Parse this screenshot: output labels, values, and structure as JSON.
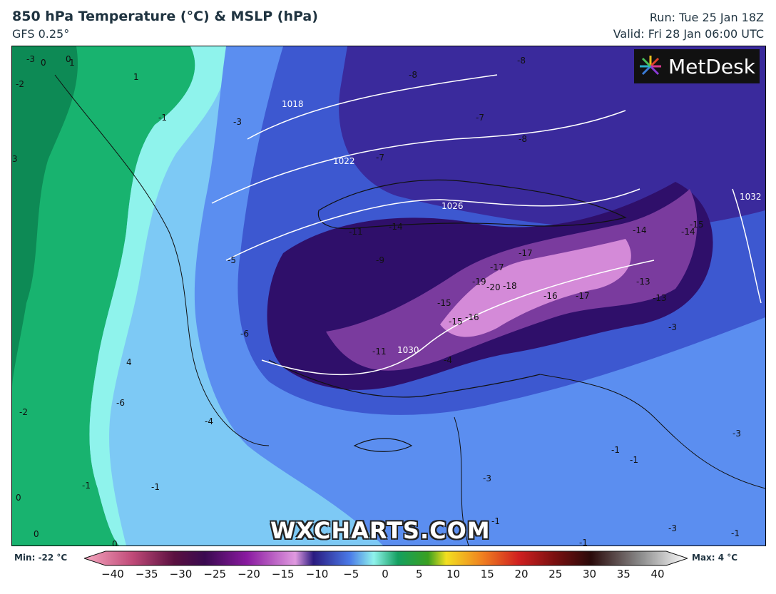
{
  "header": {
    "title": "850 hPa Temperature (°C) & MSLP (hPa)",
    "model": "GFS 0.25°",
    "run": "Run: Tue 25 Jan 18Z",
    "valid": "Valid: Fri 28 Jan 06:00 UTC"
  },
  "logo": {
    "text": "MetDesk"
  },
  "watermark": "WXCHARTS.COM",
  "legend": {
    "min_label": "Min: -22 °C",
    "max_label": "Max: 4 °C",
    "ticks": [
      "−40",
      "−35",
      "−30",
      "−25",
      "−20",
      "−15",
      "−10",
      "−5",
      "0",
      "5",
      "10",
      "15",
      "20",
      "25",
      "30",
      "35",
      "40"
    ]
  },
  "map": {
    "isobars": [
      "1018",
      "1022",
      "1026",
      "1030",
      "1032"
    ],
    "temp_labels": [
      "-3",
      "0",
      "0",
      "-2",
      "1",
      "-1",
      "-3",
      "-6",
      "-7",
      "-8",
      "-8",
      "-7",
      "-8",
      "-11",
      "-14",
      "-9",
      "-5",
      "-15",
      "-16",
      "-17",
      "-19",
      "-20",
      "-18",
      "-17",
      "-15",
      "-16",
      "-17",
      "-14",
      "-13",
      "-13",
      "-14",
      "-15",
      "-11",
      "-4",
      "-3",
      "-2",
      "-4",
      "-6",
      "-3",
      "-1",
      "-1",
      "-3",
      "-1",
      "-1",
      "-1",
      "-1",
      "-1",
      "-3",
      "0",
      "0",
      "0",
      "1",
      "3",
      "4"
    ]
  },
  "colors": {
    "green_dark": "#0d8a55",
    "green": "#18b36f",
    "cyan_light": "#8ff3ec",
    "blue_light": "#7dc9f5",
    "blue": "#5b8ef0",
    "blue_dark": "#3d58d0",
    "indigo": "#3a2a9c",
    "purple_dark": "#2f0f6a",
    "purple": "#7a3b9e",
    "pink": "#d48ad8"
  }
}
